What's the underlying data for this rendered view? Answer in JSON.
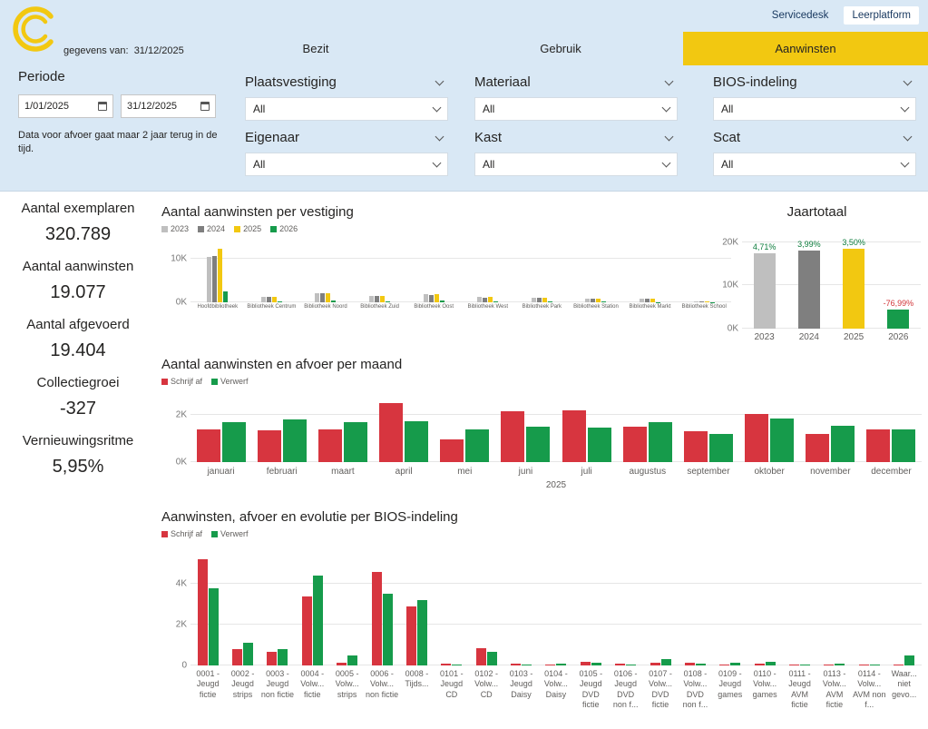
{
  "theme": {
    "accent_yellow": "#F2C811",
    "panel_blue": "#D9E8F5",
    "red": "#D7353F",
    "green": "#169B4B",
    "gray_light": "#BFBFBF",
    "gray_dark": "#7F7F7F"
  },
  "topbar": {
    "links": [
      {
        "label": "Servicedesk"
      },
      {
        "label": "Leerplatform"
      }
    ]
  },
  "header": {
    "gegevens_label": "gegevens van:",
    "gegevens_date": "31/12/2025",
    "tabs": [
      {
        "label": "Bezit"
      },
      {
        "label": "Gebruik"
      },
      {
        "label": "Aanwinsten"
      }
    ]
  },
  "filters": {
    "periode_label": "Periode",
    "date_from": "1/01/2025",
    "date_to": "31/12/2025",
    "note": "Data voor afvoer gaat maar 2 jaar terug in de tijd.",
    "dropdowns": [
      {
        "label": "Plaatsvestiging",
        "value": "All"
      },
      {
        "label": "Materiaal",
        "value": "All"
      },
      {
        "label": "BIOS-indeling",
        "value": "All"
      },
      {
        "label": "Eigenaar",
        "value": "All"
      },
      {
        "label": "Kast",
        "value": "All"
      },
      {
        "label": "Scat",
        "value": "All"
      }
    ]
  },
  "kpis": [
    {
      "label": "Aantal exemplaren",
      "value": "320.789"
    },
    {
      "label": "Aantal aanwinsten",
      "value": "19.077"
    },
    {
      "label": "Aantal afgevoerd",
      "value": "19.404"
    },
    {
      "label": "Collectiegroei",
      "value": "-327"
    },
    {
      "label": "Vernieuwingsritme",
      "value": "5,95%"
    }
  ],
  "chart_data": [
    {
      "type": "bar",
      "title": "Aantal aanwinsten per vestiging",
      "categories": [
        "Hoofdbibliotheek",
        "Bibliotheek Centrum",
        "Bibliotheek Noord",
        "Bibliotheek Zuid",
        "Bibliotheek Oost",
        "Bibliotheek West",
        "Bibliotheek Park",
        "Bibliotheek Station",
        "Bibliotheek Markt",
        "Bibliotheek School"
      ],
      "series": [
        {
          "name": "2023",
          "color": "#BFBFBF",
          "values": [
            10.5,
            1.3,
            2.0,
            1.5,
            1.8,
            1.2,
            1.0,
            0.9,
            0.8,
            0.3
          ]
        },
        {
          "name": "2024",
          "color": "#7F7F7F",
          "values": [
            10.8,
            1.3,
            2.0,
            1.4,
            1.7,
            1.1,
            1.0,
            0.9,
            0.8,
            0.3
          ]
        },
        {
          "name": "2025",
          "color": "#F2C811",
          "values": [
            12.3,
            1.2,
            2.1,
            1.5,
            1.8,
            1.2,
            1.1,
            0.9,
            0.8,
            0.3
          ]
        },
        {
          "name": "2026",
          "color": "#169B4B",
          "values": [
            2.6,
            0.3,
            0.4,
            0.3,
            0.4,
            0.2,
            0.2,
            0.2,
            0.1,
            0.05
          ]
        }
      ],
      "ylim": [
        0,
        13
      ],
      "yticks": [
        {
          "v": 0,
          "label": "0K"
        },
        {
          "v": 10,
          "label": "10K"
        }
      ],
      "legend_position": "top"
    },
    {
      "type": "bar",
      "title": "Jaartotaal",
      "categories": [
        "2023",
        "2024",
        "2025",
        "2026"
      ],
      "series": [
        {
          "name": "",
          "colors": [
            "#BFBFBF",
            "#7F7F7F",
            "#F2C811",
            "#169B4B"
          ],
          "values": [
            17.4,
            18.1,
            19.1,
            4.4
          ]
        }
      ],
      "bar_labels": [
        "4,71%",
        "3,99%",
        "3,50%",
        "-76,99%"
      ],
      "bar_label_colors": [
        "#0C7C3C",
        "#0C7C3C",
        "#0C7C3C",
        "#D13438"
      ],
      "ylim": [
        0,
        21
      ],
      "yticks": [
        {
          "v": 0,
          "label": "0K"
        },
        {
          "v": 10,
          "label": "10K"
        },
        {
          "v": 20,
          "label": "20K"
        }
      ]
    },
    {
      "type": "bar",
      "title": "Aantal aanwinsten en afvoer per maand",
      "categories": [
        "januari",
        "februari",
        "maart",
        "april",
        "mei",
        "juni",
        "juli",
        "augustus",
        "september",
        "oktober",
        "november",
        "december"
      ],
      "series": [
        {
          "name": "Schrijf af",
          "color": "#D7353F",
          "values": [
            1.4,
            1.35,
            1.4,
            2.5,
            0.95,
            2.15,
            2.2,
            1.5,
            1.3,
            2.05,
            1.2,
            1.4
          ]
        },
        {
          "name": "Verwerf",
          "color": "#169B4B",
          "values": [
            1.7,
            1.8,
            1.7,
            1.75,
            1.4,
            1.5,
            1.45,
            1.7,
            1.2,
            1.85,
            1.55,
            1.4
          ]
        }
      ],
      "xlabel": "2025",
      "ylim": [
        0,
        2.7
      ],
      "yticks": [
        {
          "v": 0,
          "label": "0K"
        },
        {
          "v": 2,
          "label": "2K"
        }
      ],
      "legend_position": "top"
    },
    {
      "type": "bar",
      "title": "Aanwinsten, afvoer en evolutie per BIOS-indeling",
      "categories": [
        "0001 - Jeugd fictie",
        "0002 - Jeugd strips",
        "0003 - Jeugd non fictie",
        "0004 - Volw... fictie",
        "0005 - Volw... strips",
        "0006 - Volw... non fictie",
        "0008 - Tijds...",
        "0101 - Jeugd CD",
        "0102 - Volw... CD",
        "0103 - Jeugd Daisy",
        "0104 - Volw... Daisy",
        "0105 - Jeugd DVD fictie",
        "0106 - Jeugd DVD non f...",
        "0107 - Volw... DVD fictie",
        "0108 - Volw... DVD non f...",
        "0109 - Jeugd games",
        "0110 - Volw... games",
        "0111 - Jeugd AVM fictie",
        "0113 - Volw... AVM fictie",
        "0114 - Volw... AVM non f...",
        "Waar... niet gevo..."
      ],
      "series": [
        {
          "name": "Schrijf af",
          "color": "#D7353F",
          "values": [
            5.2,
            0.8,
            0.65,
            3.4,
            0.15,
            4.6,
            2.9,
            0.1,
            0.85,
            0.08,
            0.05,
            0.18,
            0.08,
            0.12,
            0.12,
            0.05,
            0.08,
            0.05,
            0.05,
            0.06,
            0.02
          ]
        },
        {
          "name": "Verwerf",
          "color": "#169B4B",
          "values": [
            3.8,
            1.1,
            0.8,
            4.4,
            0.5,
            3.5,
            3.2,
            0.05,
            0.65,
            0.05,
            0.1,
            0.12,
            0.05,
            0.3,
            0.08,
            0.12,
            0.18,
            0.04,
            0.08,
            0.05,
            0.5
          ]
        }
      ],
      "ylim": [
        0,
        5.6
      ],
      "yticks": [
        {
          "v": 0,
          "label": "0"
        },
        {
          "v": 2,
          "label": "2K"
        },
        {
          "v": 4,
          "label": "4K"
        }
      ],
      "legend_position": "top"
    }
  ]
}
